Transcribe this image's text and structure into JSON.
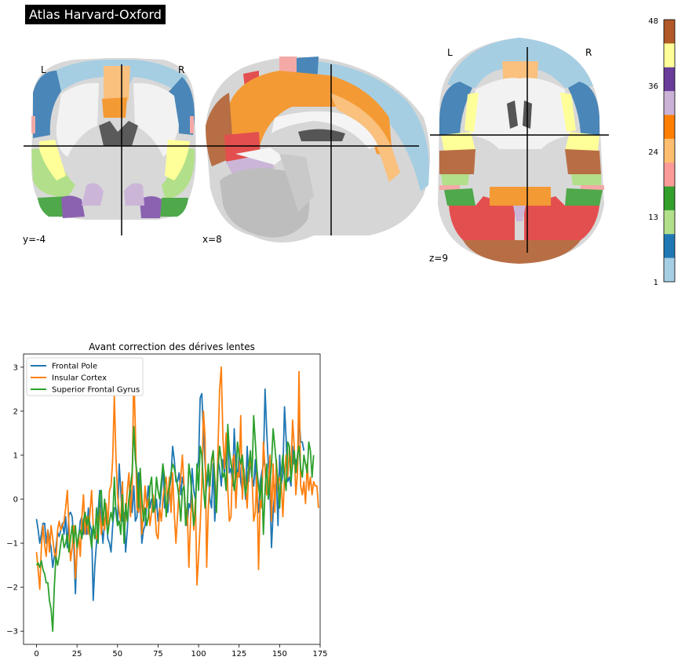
{
  "atlas": {
    "title": "Atlas Harvard-Oxford",
    "coronal": {
      "left": "L",
      "right": "R",
      "coord": "y=-4"
    },
    "sagittal": {
      "coord": "x=8"
    },
    "axial": {
      "left": "L",
      "right": "R",
      "coord": "z=9"
    },
    "colorbar": {
      "ticks": [
        "48",
        "36",
        "24",
        "13",
        "1"
      ],
      "colors": [
        "#b15928",
        "#ffff99",
        "#6a3d9a",
        "#cab2d6",
        "#ff7f00",
        "#fdbf6f",
        "#fb9a99",
        "#33a02c",
        "#b2df8a",
        "#1f78b4",
        "#a6cee3"
      ]
    },
    "region_colors": {
      "light_blue": "#a6cee3",
      "blue": "#4a86b8",
      "light_green": "#b2df8a",
      "green": "#4fa84a",
      "pink": "#f4a9a6",
      "red": "#e34f4f",
      "light_orange": "#f9c07e",
      "orange": "#f49a35",
      "lilac": "#cbb6d8",
      "purple": "#8a62b0",
      "yellow": "#ffff99",
      "brown": "#b86e44"
    }
  },
  "chart_data": {
    "type": "line",
    "title": "Avant correction des dérives lentes",
    "xlabel": "",
    "ylabel": "",
    "xlim": [
      -8,
      175
    ],
    "ylim": [
      -3.3,
      3.3
    ],
    "xticks": [
      0,
      25,
      50,
      75,
      100,
      125,
      150,
      175
    ],
    "yticks": [
      -3,
      -2,
      -1,
      0,
      1,
      2,
      3
    ],
    "legend_position": "upper-left",
    "series": [
      {
        "name": "Frontal Pole",
        "color": "#1f77b4",
        "values": [
          -0.45,
          -0.7,
          -1.0,
          -0.8,
          -0.55,
          -0.55,
          -1.0,
          -0.7,
          -0.9,
          -1.1,
          -1.55,
          -1.3,
          -1.1,
          -0.75,
          -0.85,
          -0.7,
          -0.55,
          -0.8,
          -0.4,
          -1.1,
          -0.35,
          -0.3,
          -0.4,
          -1.0,
          -2.15,
          -1.1,
          -0.9,
          -0.5,
          -0.4,
          -0.8,
          -0.3,
          -0.8,
          -0.2,
          -0.6,
          -0.7,
          -2.3,
          -1.5,
          -1.0,
          -0.3,
          0.2,
          -0.5,
          -1.0,
          -0.5,
          -0.3,
          -0.9,
          -1.0,
          -1.2,
          -0.6,
          -0.2,
          -0.2,
          -0.6,
          0.8,
          0.2,
          -0.5,
          -0.3,
          -1.2,
          -0.7,
          0.0,
          0.2,
          -0.3,
          0.3,
          -0.5,
          -0.4,
          0.6,
          -0.1,
          -1.0,
          -0.7,
          -0.6,
          -0.1,
          0.3,
          -0.2,
          0.0,
          -0.1,
          -0.3,
          0.0,
          -0.5,
          -0.2,
          0.2,
          0.8,
          -0.2,
          -0.1,
          -0.3,
          0.2,
          0.5,
          1.2,
          0.9,
          0.4,
          0.4,
          0.6,
          0.1,
          0.5,
          0.3,
          -0.3,
          -0.6,
          -0.1,
          -0.2,
          0.7,
          0.2,
          0.0,
          0.6,
          0.9,
          2.3,
          2.4,
          1.5,
          0.8,
          0.3,
          0.6,
          0.0,
          -0.2,
          0.8,
          -0.5,
          0.1,
          0.9,
          0.7,
          0.3,
          0.9,
          0.6,
          1.0,
          1.4,
          0.6,
          0.7,
          0.3,
          1.6,
          0.8,
          0.5,
          1.0,
          0.4,
          0.2,
          0.6,
          0.0,
          1.2,
          0.4,
          0.9,
          0.5,
          0.3,
          0.9,
          0.0,
          -0.3,
          0.4,
          0.6,
          0.8,
          2.5,
          1.6,
          0.8,
          0.2,
          -1.1,
          -0.3,
          0.2,
          0.5,
          -0.6,
          1.0,
          0.3,
          0.6,
          2.1,
          1.4,
          0.4,
          0.5,
          0.3,
          1.2,
          0.8,
          0.9,
          0.6,
          1.9,
          1.3,
          1.3,
          1.1
        ]
      },
      {
        "name": "Insular Cortex",
        "color": "#ff7f0e",
        "values": [
          -1.2,
          -1.6,
          -2.05,
          -1.1,
          -0.6,
          -1.05,
          -1.3,
          -0.7,
          -1.2,
          -0.6,
          -0.9,
          -1.2,
          -1.4,
          -0.7,
          -0.5,
          -0.7,
          -0.6,
          -0.5,
          -0.2,
          0.2,
          -0.6,
          -1.4,
          -1.1,
          -0.6,
          -1.8,
          -1.2,
          -0.8,
          -1.3,
          -0.4,
          0.1,
          -0.8,
          -0.4,
          -0.8,
          -0.3,
          0.2,
          -0.6,
          -0.8,
          -0.9,
          -0.5,
          -0.2,
          -0.8,
          -0.3,
          -0.7,
          -0.1,
          -0.6,
          0.2,
          0.3,
          0.9,
          2.35,
          1.0,
          0.1,
          -0.3,
          -0.5,
          0.4,
          -0.8,
          -0.4,
          0.2,
          0.6,
          -0.4,
          0.3,
          2.9,
          1.6,
          -0.2,
          -0.3,
          0.3,
          -0.8,
          -0.3,
          0.3,
          -0.2,
          0.0,
          -0.6,
          -0.3,
          0.1,
          -0.2,
          -0.8,
          -0.9,
          -0.2,
          -0.5,
          0.0,
          0.3,
          0.5,
          -0.1,
          0.5,
          -0.3,
          0.6,
          -0.3,
          -1.0,
          -0.4,
          0.2,
          0.5,
          1.0,
          0.3,
          -0.4,
          -0.2,
          -1.55,
          -0.5,
          0.1,
          -0.7,
          0.0,
          -1.95,
          -1.3,
          -0.6,
          0.3,
          2.0,
          1.4,
          -1.55,
          -0.2,
          0.4,
          0.8,
          1.1,
          0.5,
          -0.3,
          1.2,
          2.5,
          3.0,
          1.4,
          0.7,
          1.5,
          0.2,
          -0.5,
          -0.4,
          0.9,
          1.0,
          -0.2,
          0.6,
          0.5,
          1.9,
          0.0,
          0.7,
          0.3,
          -0.2,
          0.7,
          0.9,
          0.5,
          -0.5,
          -0.3,
          0.6,
          -1.6,
          0.0,
          -0.2,
          1.3,
          0.7,
          0.1,
          0.2,
          1.0,
          -0.5,
          0.8,
          -0.3,
          0.9,
          0.2,
          0.5,
          0.4,
          -0.4,
          0.5,
          1.0,
          0.5,
          1.1,
          0.6,
          1.8,
          1.2,
          0.1,
          0.6,
          2.9,
          0.3,
          0.1,
          0.4,
          -0.1,
          0.8,
          0.2,
          0.5,
          0.1,
          0.4,
          0.3,
          0.3,
          -0.2
        ]
      },
      {
        "name": "Superior Frontal Gyrus",
        "color": "#2ca02c",
        "values": [
          -1.5,
          -1.45,
          -1.55,
          -1.4,
          -1.6,
          -1.7,
          -1.9,
          -1.9,
          -2.3,
          -2.5,
          -3.0,
          -2.0,
          -1.3,
          -1.5,
          -1.3,
          -1.0,
          -0.8,
          -1.1,
          -1.0,
          -0.8,
          -1.2,
          -0.9,
          -0.6,
          -1.0,
          -0.6,
          -1.1,
          -0.8,
          -0.7,
          -0.9,
          -0.5,
          -0.3,
          -0.6,
          -0.4,
          -0.8,
          -1.1,
          -0.6,
          -0.9,
          -0.2,
          -1.0,
          0.1,
          0.2,
          -0.6,
          0.0,
          -0.4,
          -0.8,
          -0.5,
          -0.3,
          -0.5,
          0.5,
          -0.3,
          -0.6,
          -0.5,
          -0.8,
          0.1,
          -1.0,
          -0.1,
          -0.5,
          0.0,
          0.3,
          0.6,
          1.65,
          0.9,
          0.6,
          -0.2,
          0.7,
          0.0,
          -0.5,
          -0.2,
          -0.6,
          -0.4,
          0.3,
          0.5,
          -0.3,
          -0.2,
          0.5,
          0.2,
          0.0,
          0.4,
          0.8,
          0.5,
          -0.4,
          0.1,
          0.3,
          0.6,
          0.8,
          0.7,
          0.5,
          0.3,
          0.0,
          -0.5,
          0.2,
          0.3,
          -0.6,
          -0.2,
          0.8,
          0.5,
          0.0,
          -0.6,
          -0.3,
          0.8,
          0.2,
          1.2,
          1.0,
          0.3,
          -0.2,
          0.4,
          0.8,
          0.3,
          0.9,
          1.1,
          0.4,
          -0.3,
          0.7,
          1.2,
          0.9,
          0.5,
          0.6,
          0.2,
          1.7,
          1.1,
          0.8,
          0.6,
          0.2,
          0.5,
          1.3,
          1.0,
          0.8,
          1.0,
          0.5,
          0.1,
          0.4,
          0.8,
          1.1,
          0.5,
          1.9,
          1.3,
          0.7,
          0.3,
          0.0,
          0.5,
          -0.8,
          0.2,
          0.8,
          0.0,
          0.4,
          0.8,
          1.6,
          1.2,
          0.8,
          0.4,
          -0.2,
          0.6,
          1.0,
          0.5,
          0.2,
          1.3,
          1.2,
          0.4,
          0.8,
          1.1,
          0.6,
          1.0,
          1.2,
          0.7,
          0.5,
          1.0,
          0.8,
          0.6,
          1.3,
          1.1,
          0.5,
          1.0
        ]
      }
    ]
  }
}
